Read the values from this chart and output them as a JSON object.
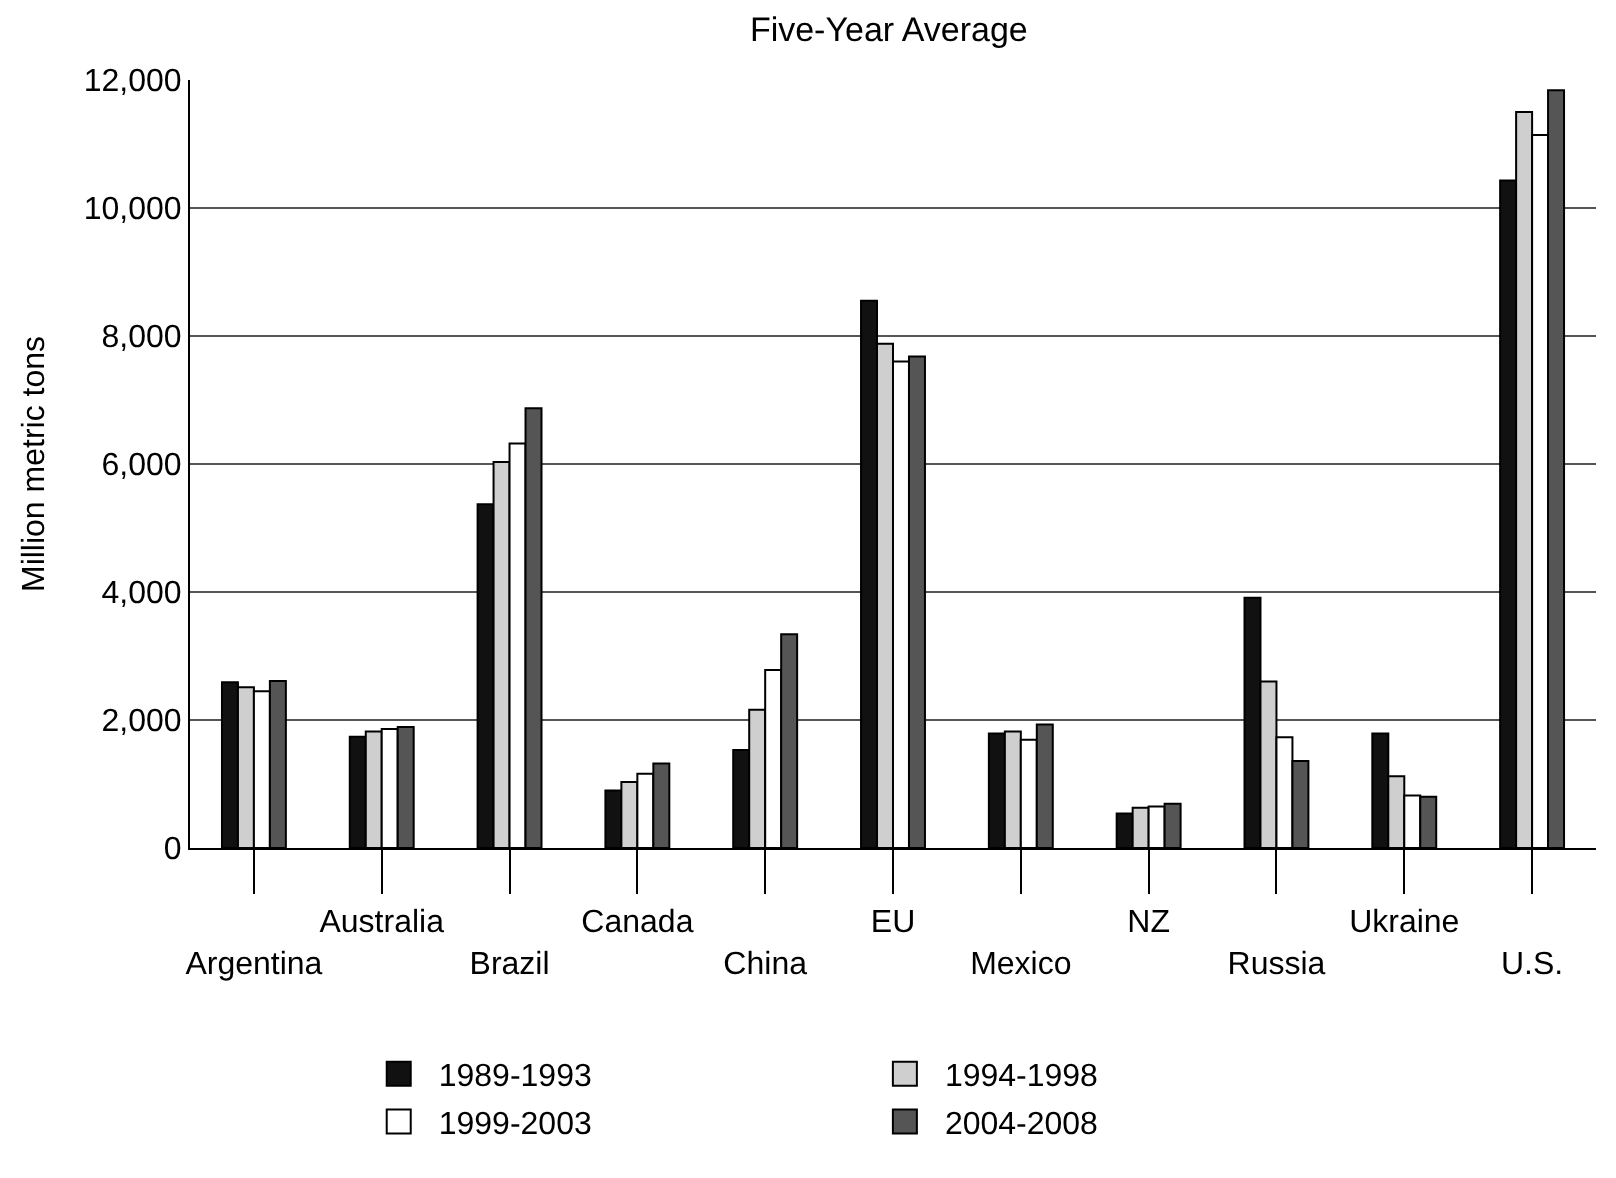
{
  "chart_data": {
    "type": "bar",
    "title": "Five-Year Average",
    "ylabel": "Million metric tons",
    "categories": [
      "Argentina",
      "Australia",
      "Brazil",
      "Canada",
      "China",
      "EU",
      "Mexico",
      "NZ",
      "Russia",
      "Ukraine",
      "U.S."
    ],
    "series": [
      {
        "name": "1989-1993",
        "color": "#111111",
        "values": [
          2590,
          1740,
          5370,
          900,
          1530,
          8550,
          1790,
          540,
          3910,
          1790,
          10430
        ]
      },
      {
        "name": "1994-1998",
        "color": "#cfcfcf",
        "values": [
          2510,
          1820,
          6030,
          1030,
          2160,
          7880,
          1820,
          630,
          2600,
          1120,
          11500
        ]
      },
      {
        "name": "1999-2003",
        "color": "#ffffff",
        "values": [
          2450,
          1860,
          6320,
          1160,
          2780,
          7600,
          1690,
          650,
          1730,
          820,
          11140
        ]
      },
      {
        "name": "2004-2008",
        "color": "#555555",
        "values": [
          2610,
          1890,
          6870,
          1320,
          3340,
          7680,
          1930,
          690,
          1360,
          800,
          11840
        ]
      }
    ],
    "ylim": [
      0,
      12000
    ],
    "yticks": [
      {
        "value": 0,
        "label": "0"
      },
      {
        "value": 2000,
        "label": "2,000"
      },
      {
        "value": 4000,
        "label": "4,000"
      },
      {
        "value": 6000,
        "label": "6,000"
      },
      {
        "value": 8000,
        "label": "8,000"
      },
      {
        "value": 10000,
        "label": "10,000"
      },
      {
        "value": 12000,
        "label": "12,000"
      }
    ],
    "grid": "y",
    "legend": "bottom"
  }
}
